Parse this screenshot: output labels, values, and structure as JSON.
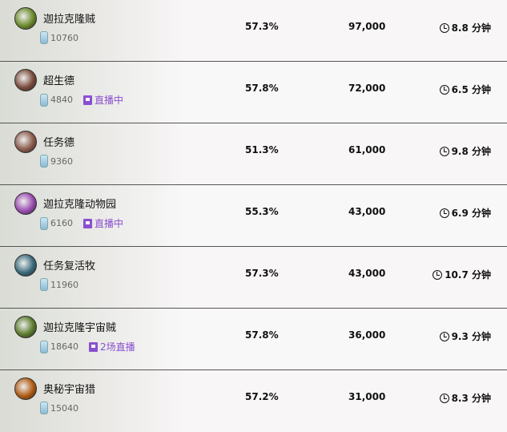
{
  "decks": [
    {
      "name": "迦拉克隆贼",
      "dust": "10760",
      "live": "",
      "winrate": "57.3%",
      "games": "97,000",
      "duration": "8.8 分钟",
      "icon_color": "#6a8a2a"
    },
    {
      "name": "超生德",
      "dust": "4840",
      "live": "直播中",
      "winrate": "57.8%",
      "games": "72,000",
      "duration": "6.5 分钟",
      "icon_color": "#7a4a3a"
    },
    {
      "name": "任务德",
      "dust": "9360",
      "live": "",
      "winrate": "51.3%",
      "games": "61,000",
      "duration": "9.8 分钟",
      "icon_color": "#8a5a4a"
    },
    {
      "name": "迦拉克隆动物园",
      "dust": "6160",
      "live": "直播中",
      "winrate": "55.3%",
      "games": "43,000",
      "duration": "6.9 分钟",
      "icon_color": "#9a4ab0"
    },
    {
      "name": "任务复活牧",
      "dust": "11960",
      "live": "",
      "winrate": "57.3%",
      "games": "43,000",
      "duration": "10.7 分钟",
      "icon_color": "#3a6a7a"
    },
    {
      "name": "迦拉克隆宇宙贼",
      "dust": "18640",
      "live": "2场直播",
      "winrate": "57.8%",
      "games": "36,000",
      "duration": "9.3 分钟",
      "icon_color": "#5a7a2a"
    },
    {
      "name": "奥秘宇宙猎",
      "dust": "15040",
      "live": "",
      "winrate": "57.2%",
      "games": "31,000",
      "duration": "8.3 分钟",
      "icon_color": "#b05a10"
    }
  ]
}
